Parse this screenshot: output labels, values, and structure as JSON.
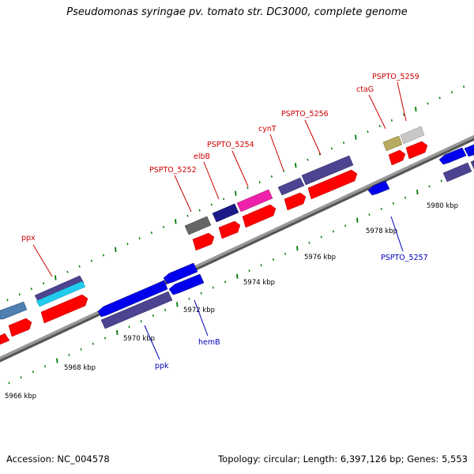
{
  "title": "Pseudomonas syringae pv. tomato str. DC3000, complete genome",
  "footer": {
    "accession": "Accession: NC_004578",
    "summary": "Topology: circular; Length: 6,397,126 bp; Genes: 5,553"
  },
  "scale_labels": [
    "5966 kbp",
    "5968 kbp",
    "5970 kbp",
    "5972 kbp",
    "5974 kbp",
    "5976 kbp",
    "5978 kbp",
    "5980 kbp"
  ],
  "forward_gene_labels": [
    "ppx",
    "PSPTO_5252",
    "elbB",
    "PSPTO_5254",
    "cynT",
    "PSPTO_5256",
    "ctaG",
    "PSPTO_5259"
  ],
  "reverse_gene_labels": [
    "ppk",
    "hemB",
    "PSPTO_5257"
  ],
  "colors": {
    "forward_label": "#cc0000",
    "reverse_label": "#0000bb",
    "cds_red": "#ff0000",
    "cds_blue": "#0000ee",
    "backbone": "#888888",
    "tick": "#007700"
  }
}
